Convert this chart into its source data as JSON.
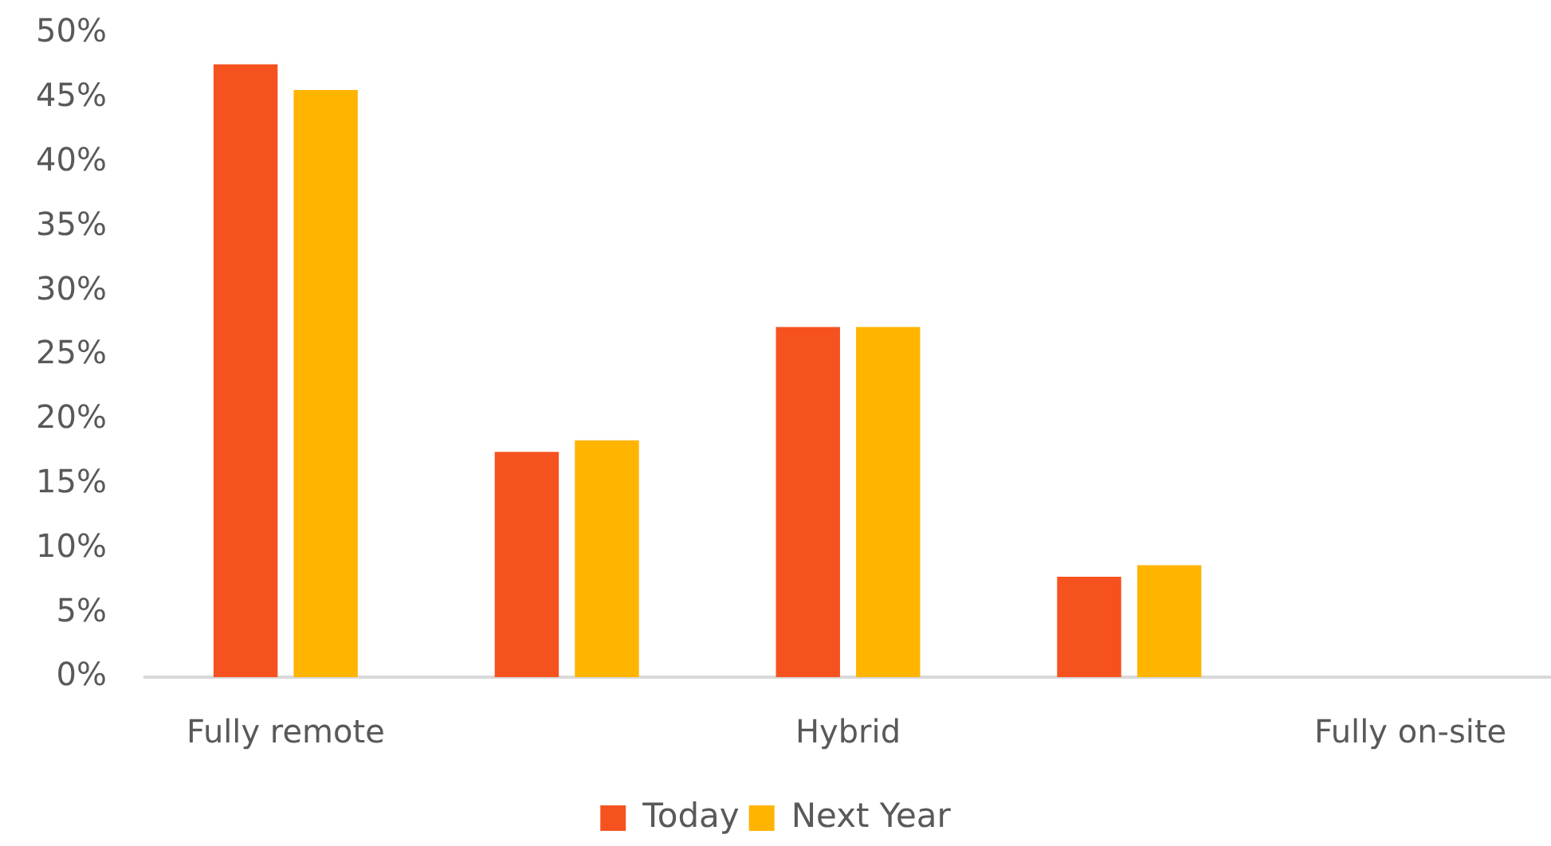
{
  "chart_data": {
    "type": "bar",
    "categories": [
      "Fully remote",
      null,
      "Hybrid",
      null,
      "Fully on-site"
    ],
    "series": [
      {
        "name": "Today",
        "color": "#f65220",
        "values": [
          47.6,
          17.5,
          27.2,
          7.8,
          0
        ]
      },
      {
        "name": "Next Year",
        "color": "#ffb400",
        "values": [
          45.6,
          18.4,
          27.2,
          8.7,
          0
        ]
      }
    ],
    "ylim": [
      0,
      50
    ],
    "yticks": [
      {
        "value": 0,
        "label": "0%"
      },
      {
        "value": 5,
        "label": "5%"
      },
      {
        "value": 10,
        "label": "10%"
      },
      {
        "value": 15,
        "label": "15%"
      },
      {
        "value": 20,
        "label": "20%"
      },
      {
        "value": 25,
        "label": "25%"
      },
      {
        "value": 30,
        "label": "30%"
      },
      {
        "value": 35,
        "label": "35%"
      },
      {
        "value": 40,
        "label": "40%"
      },
      {
        "value": 45,
        "label": "45%"
      },
      {
        "value": 50,
        "label": "50%"
      }
    ],
    "grid": false,
    "legend": "bottom"
  }
}
